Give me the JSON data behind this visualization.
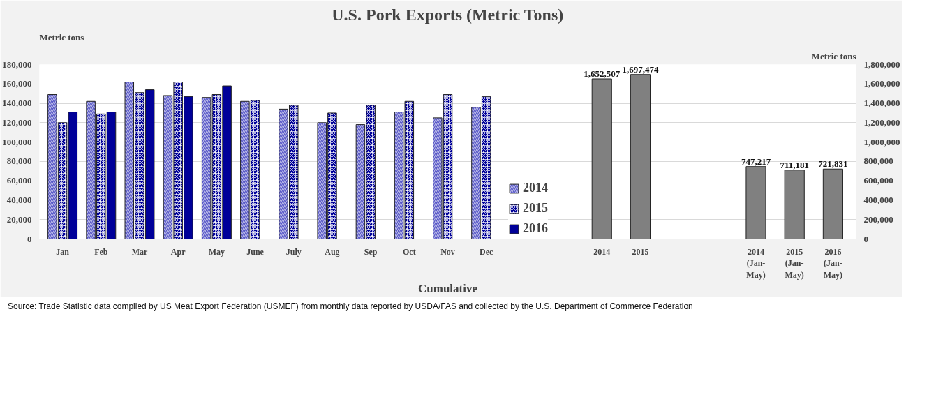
{
  "chart_data": {
    "type": "bar",
    "title": "U.S. Pork Exports (Metric Tons)",
    "ylabel": "Metric tons",
    "y2label": "Metric tons",
    "xlabel": "Cumulative",
    "categories": [
      "Jan",
      "Feb",
      "Mar",
      "Apr",
      "May",
      "June",
      "July",
      "Aug",
      "Sep",
      "Oct",
      "Nov",
      "Dec",
      null,
      null,
      "2014",
      "2015",
      null,
      null,
      "2014 (Jan-May)",
      "2015 (Jan-May)",
      "2016 (Jan-May)"
    ],
    "series": [
      {
        "name": "2014",
        "color": "#5a5ac8",
        "values": [
          149000,
          142000,
          162000,
          148000,
          146000,
          142000,
          134000,
          120000,
          118000,
          131000,
          125000,
          136000,
          null,
          null,
          null,
          null,
          null,
          null,
          null,
          null,
          null
        ]
      },
      {
        "name": "2015",
        "color": "#000099",
        "values": [
          120000,
          129000,
          151000,
          162000,
          149000,
          143000,
          138000,
          130000,
          138000,
          142000,
          149000,
          147000,
          null,
          null,
          null,
          null,
          null,
          null,
          null,
          null,
          null
        ]
      },
      {
        "name": "2016",
        "color": "#000099",
        "values": [
          131000,
          131000,
          154000,
          147000,
          158000,
          null,
          null,
          null,
          null,
          null,
          null,
          null,
          null,
          null,
          null,
          null,
          null,
          null,
          null,
          null,
          null
        ]
      },
      {
        "color": "#808080",
        "axis": "y2",
        "values": [
          null,
          null,
          null,
          null,
          null,
          null,
          null,
          null,
          null,
          null,
          null,
          null,
          null,
          null,
          1652507,
          1697474,
          null,
          null,
          747217,
          711181,
          721831
        ],
        "value_labels": [
          null,
          null,
          null,
          null,
          null,
          null,
          null,
          null,
          null,
          null,
          null,
          null,
          null,
          null,
          "1,652,507",
          "1,697,474",
          null,
          null,
          "747,217",
          "711,181",
          "721,831"
        ]
      }
    ],
    "ylim": [
      0,
      180000
    ],
    "yticks": [
      0,
      {
        "value": 20000,
        "label": "20,000"
      },
      {
        "value": 40000,
        "label": "40,000"
      },
      {
        "value": 60000,
        "label": "60,000"
      },
      {
        "value": 80000,
        "label": "80,000"
      },
      {
        "value": 100000,
        "label": "100,000"
      },
      {
        "value": 120000,
        "label": "120,000"
      },
      {
        "value": 140000,
        "label": "140,000"
      },
      {
        "value": 160000,
        "label": "160,000"
      },
      {
        "value": 180000,
        "label": "180,000"
      }
    ],
    "y2lim": [
      0,
      1800000
    ],
    "y2ticks": [
      0,
      {
        "value": 200000,
        "label": "200,000"
      },
      {
        "value": 400000,
        "label": "400,000"
      },
      {
        "value": 600000,
        "label": "600,000"
      },
      {
        "value": 800000,
        "label": "800,000"
      },
      {
        "value": 1000000,
        "label": "1,000,000"
      },
      {
        "value": 1200000,
        "label": "1,200,000"
      },
      {
        "value": 1400000,
        "label": "1,400,000"
      },
      {
        "value": 1600000,
        "label": "1,600,000"
      },
      {
        "value": 1800000,
        "label": "1,800,000"
      }
    ],
    "grid": "y",
    "legend": "bottom",
    "annotations": [
      "Source: Trade Statistic data compiled by  US Meat Export Federation (USMEF) from monthly data reported by USDA/FAS and collected by the U.S. Department of Commerce Federation"
    ]
  }
}
